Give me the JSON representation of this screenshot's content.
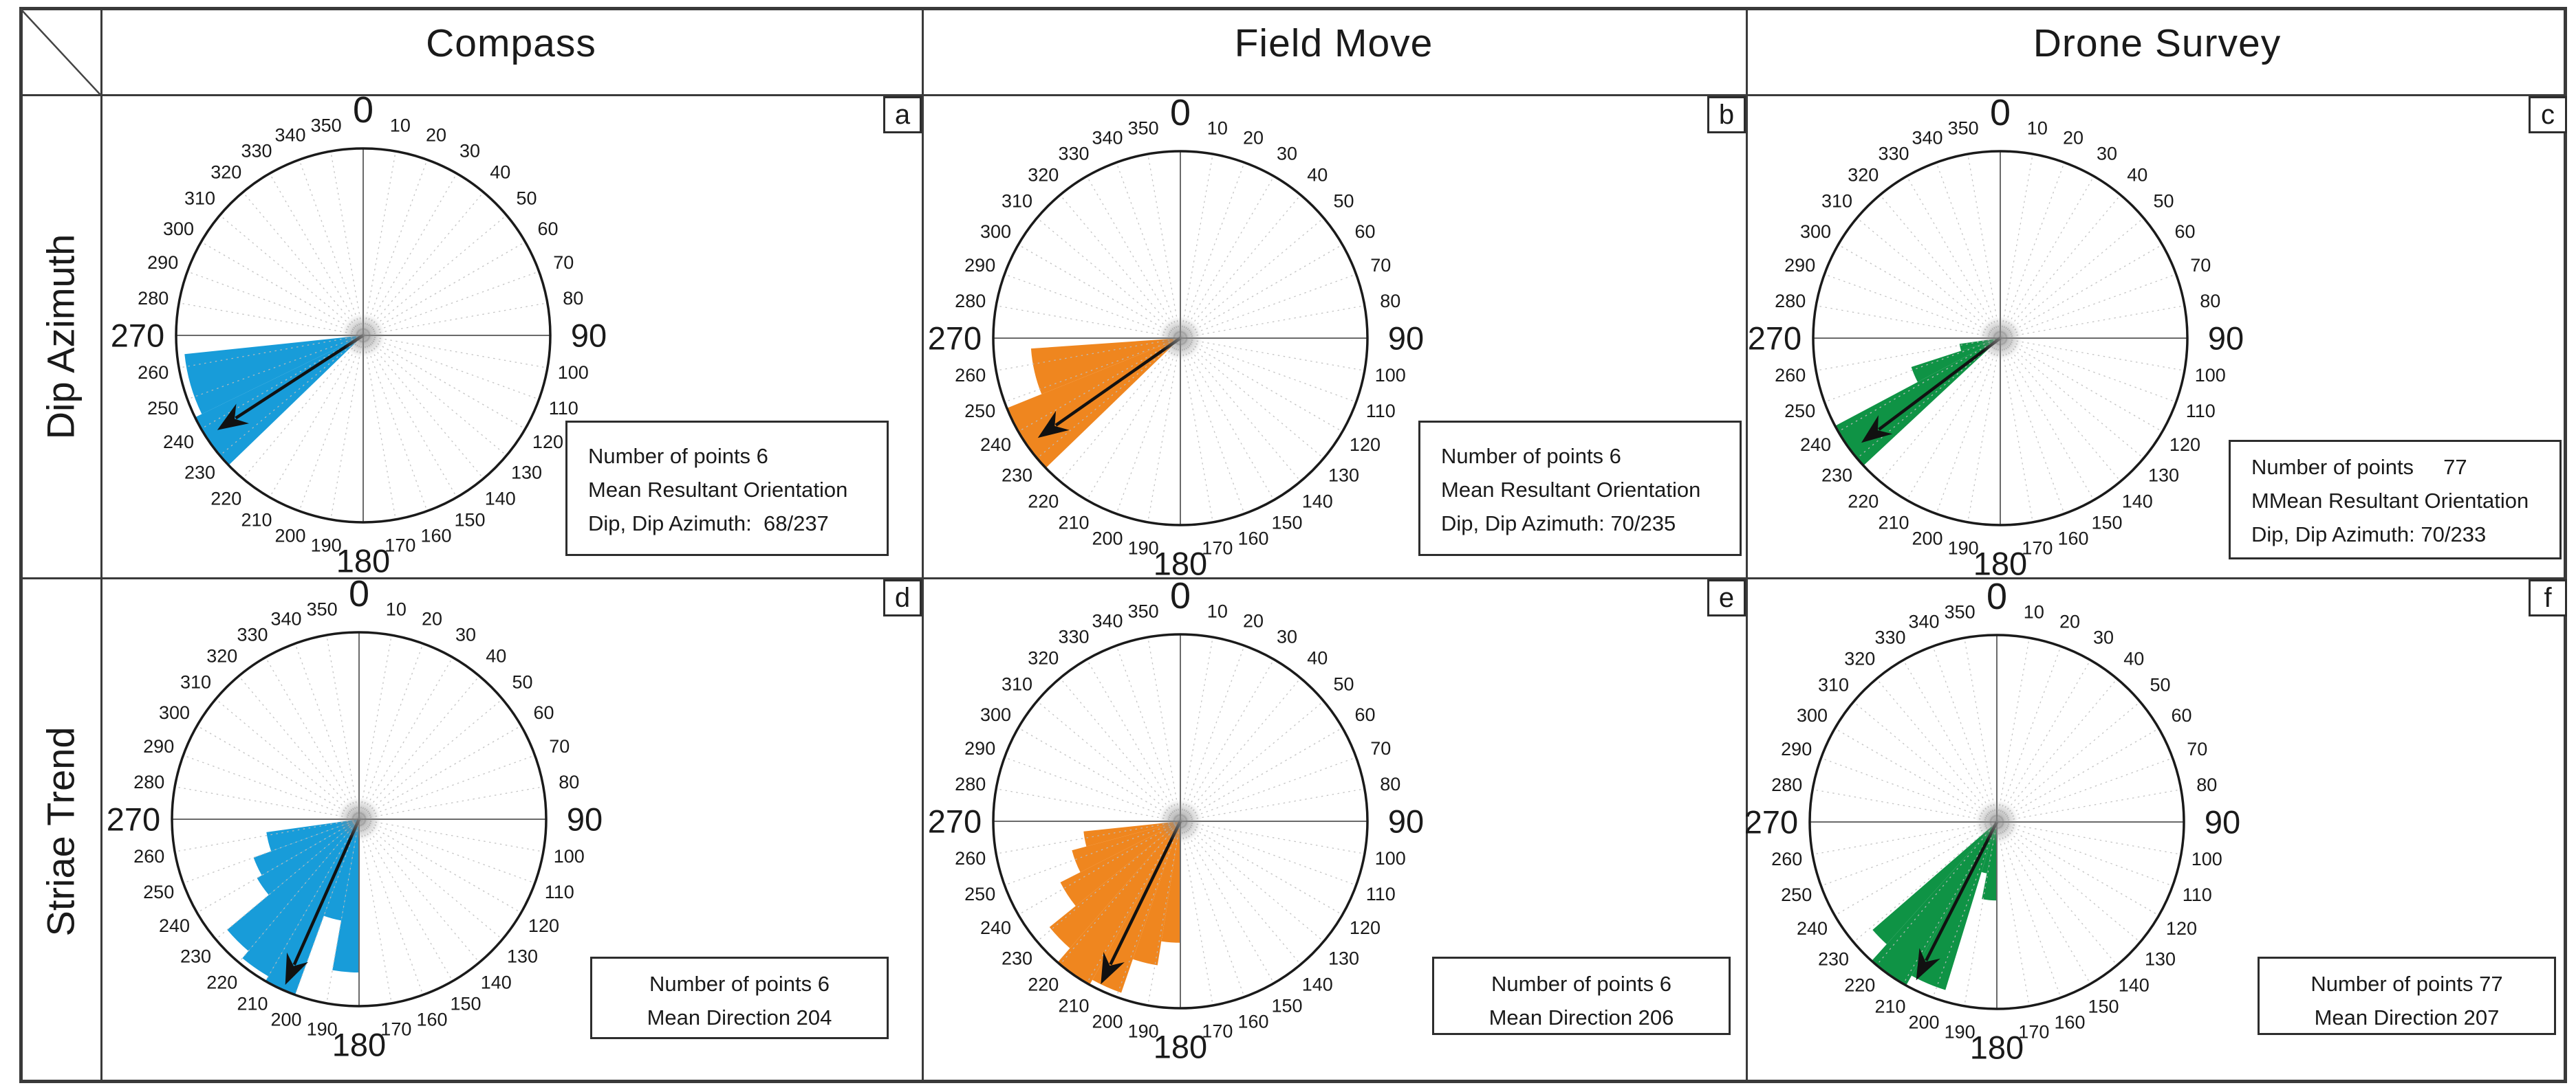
{
  "header": {
    "columns": [
      "Compass",
      "Field Move",
      "Drone Survey"
    ]
  },
  "row_labels": [
    "Dip Azimuth",
    "Striae Trend"
  ],
  "rose_axis": {
    "tick_step_deg": 10,
    "tick_min": 0,
    "tick_max": 350,
    "major_ticks": [
      0,
      90,
      180,
      270
    ]
  },
  "colors": {
    "compass": "#189CD9",
    "field_move": "#EF861F",
    "drone_survey": "#0F9345",
    "grid_minor": "#bdbdbd",
    "grid_major": "#6a6a6a",
    "circle": "#1a1a1a",
    "arrow": "#111111",
    "border": "#3a3a3a"
  },
  "chart_data": [
    {
      "letter": "a",
      "type": "bar",
      "polar": true,
      "row": "Dip Azimuth",
      "column": "Compass",
      "color": "#189CD9",
      "angle_unit": "degrees azimuth",
      "radial_unit": "relative frequency",
      "petals": [
        {
          "from": 226,
          "to": 244,
          "r": 1.0
        },
        {
          "from": 244,
          "to": 264,
          "r": 0.96
        }
      ],
      "mean_arrow": {
        "azimuth": 237,
        "length": 0.93
      },
      "stats_lines": [
        "Number of points 6",
        "Mean Resultant Orientation",
        "Dip, Dip Azimuth:  68/237"
      ]
    },
    {
      "letter": "b",
      "type": "bar",
      "polar": true,
      "row": "Dip Azimuth",
      "column": "Field Move",
      "color": "#EF861F",
      "angle_unit": "degrees azimuth",
      "radial_unit": "relative frequency",
      "petals": [
        {
          "from": 226,
          "to": 248,
          "r": 1.0
        },
        {
          "from": 248,
          "to": 266,
          "r": 0.8
        }
      ],
      "mean_arrow": {
        "azimuth": 235,
        "length": 0.93
      },
      "stats_lines": [
        "Number of points 6",
        "Mean Resultant Orientation",
        "Dip, Dip Azimuth: 70/235"
      ]
    },
    {
      "letter": "c",
      "type": "bar",
      "polar": true,
      "row": "Dip Azimuth",
      "column": "Drone Survey",
      "color": "#0F9345",
      "angle_unit": "degrees azimuth",
      "radial_unit": "relative frequency",
      "petals": [
        {
          "from": 227,
          "to": 242,
          "r": 1.0
        },
        {
          "from": 242,
          "to": 252,
          "r": 0.5
        },
        {
          "from": 252,
          "to": 262,
          "r": 0.22
        }
      ],
      "mean_arrow": {
        "azimuth": 233,
        "length": 0.93
      },
      "stats_lines": [
        "Number of points     77",
        "MMean Resultant Orientation",
        "Dip, Dip Azimuth: 70/233"
      ]
    },
    {
      "letter": "d",
      "type": "bar",
      "polar": true,
      "row": "Striae Trend",
      "column": "Compass",
      "color": "#189CD9",
      "angle_unit": "degrees azimuth",
      "radial_unit": "relative frequency",
      "petals": [
        {
          "from": 180,
          "to": 190,
          "r": 0.82
        },
        {
          "from": 190,
          "to": 200,
          "r": 0.55
        },
        {
          "from": 200,
          "to": 210,
          "r": 1.0
        },
        {
          "from": 210,
          "to": 220,
          "r": 0.97
        },
        {
          "from": 220,
          "to": 230,
          "r": 0.92
        },
        {
          "from": 230,
          "to": 240,
          "r": 0.63
        },
        {
          "from": 240,
          "to": 250,
          "r": 0.6
        },
        {
          "from": 250,
          "to": 262,
          "r": 0.5
        }
      ],
      "mean_arrow": {
        "azimuth": 204,
        "length": 0.97
      },
      "stats_lines": [
        "Number of points 6",
        "Mean Direction 204"
      ]
    },
    {
      "letter": "e",
      "type": "bar",
      "polar": true,
      "row": "Striae Trend",
      "column": "Field Move",
      "color": "#EF861F",
      "angle_unit": "degrees azimuth",
      "radial_unit": "relative frequency",
      "petals": [
        {
          "from": 180,
          "to": 189,
          "r": 0.65
        },
        {
          "from": 189,
          "to": 199,
          "r": 0.78
        },
        {
          "from": 199,
          "to": 209,
          "r": 0.97
        },
        {
          "from": 209,
          "to": 221,
          "r": 1.0
        },
        {
          "from": 221,
          "to": 231,
          "r": 0.9
        },
        {
          "from": 231,
          "to": 243,
          "r": 0.72
        },
        {
          "from": 243,
          "to": 255,
          "r": 0.6
        },
        {
          "from": 255,
          "to": 264,
          "r": 0.52
        }
      ],
      "mean_arrow": {
        "azimuth": 206,
        "length": 0.97
      },
      "stats_lines": [
        "Number of points 6",
        "Mean Direction 206"
      ]
    },
    {
      "letter": "f",
      "type": "bar",
      "polar": true,
      "row": "Striae Trend",
      "column": "Drone Survey",
      "color": "#0F9345",
      "angle_unit": "degrees azimuth",
      "radial_unit": "relative frequency",
      "petals": [
        {
          "from": 180,
          "to": 191,
          "r": 0.42
        },
        {
          "from": 191,
          "to": 197,
          "r": 0.28
        },
        {
          "from": 197,
          "to": 209,
          "r": 0.94
        },
        {
          "from": 209,
          "to": 222,
          "r": 1.0
        },
        {
          "from": 222,
          "to": 229,
          "r": 0.88
        }
      ],
      "mean_arrow": {
        "azimuth": 207,
        "length": 0.95
      },
      "stats_lines": [
        "Number of points 77",
        "Mean Direction 207"
      ]
    }
  ]
}
